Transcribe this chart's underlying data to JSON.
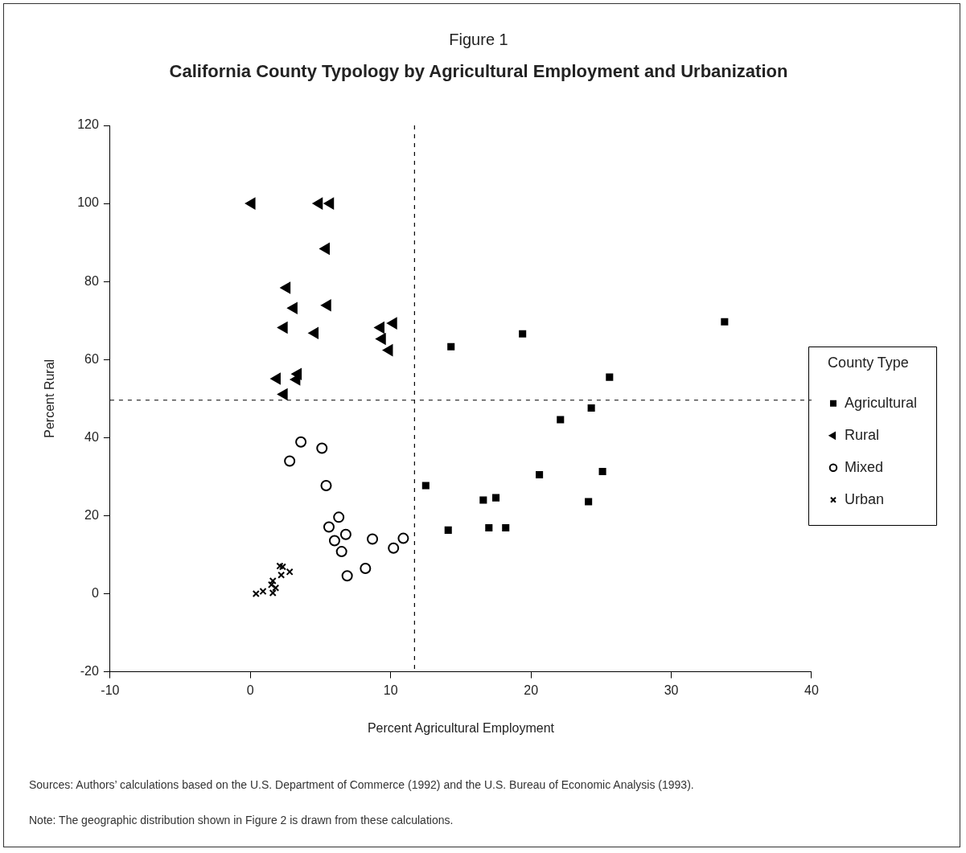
{
  "chart_data": {
    "type": "scatter",
    "title": "Figure 1",
    "subtitle": "California County Typology by Agricultural Employment and Urbanization",
    "xlabel": "Percent Agricultural Employment",
    "ylabel": "Percent Rural",
    "legend_title": "County Type",
    "legend": "right",
    "grid": false,
    "xlim": [
      -10,
      40
    ],
    "xticks": [
      -10,
      0,
      10,
      20,
      30,
      40
    ],
    "ylim": [
      -20,
      120
    ],
    "yticks": [
      -20,
      0,
      20,
      40,
      60,
      80,
      100,
      120
    ],
    "series": [
      {
        "name": "Agricultural",
        "color": "#000000",
        "marker": "square",
        "x": [
          14.3,
          19.4,
          33.8,
          25.6,
          24.3,
          22.1,
          20.6,
          25.1,
          12.5,
          16.6,
          17.5,
          24.1,
          14.1,
          17.0,
          18.2
        ],
        "values": [
          63.3,
          66.6,
          69.7,
          55.5,
          47.6,
          44.6,
          30.5,
          31.3,
          27.7,
          24.0,
          24.6,
          23.6,
          16.3,
          16.9,
          16.9
        ]
      },
      {
        "name": "Rural",
        "color": "#000000",
        "marker": "triangle",
        "x": [
          0.1,
          4.9,
          5.7,
          5.4,
          2.6,
          3.1,
          5.5,
          2.4,
          4.6,
          9.3,
          10.2,
          9.4,
          9.9,
          1.9,
          3.4,
          3.3,
          2.4
        ],
        "values": [
          100,
          100,
          100,
          88.4,
          78.4,
          73.2,
          73.9,
          68.2,
          66.8,
          68.2,
          69.3,
          65.3,
          62.4,
          55.1,
          56.3,
          54.9,
          51.1
        ]
      },
      {
        "name": "Mixed",
        "color": "#000000",
        "marker": "circle",
        "x": [
          3.6,
          5.1,
          2.8,
          5.4,
          6.3,
          5.6,
          6.8,
          6.0,
          8.7,
          10.9,
          10.2,
          6.5,
          8.2,
          6.9
        ],
        "values": [
          38.9,
          37.3,
          34.0,
          27.7,
          19.6,
          17.1,
          15.2,
          13.6,
          14.0,
          14.2,
          11.7,
          10.8,
          6.5,
          4.6
        ]
      },
      {
        "name": "Urban",
        "color": "#000000",
        "marker": "cross",
        "x": [
          2.1,
          2.3,
          2.8,
          2.2,
          1.6,
          1.5,
          1.8,
          1.6,
          0.9,
          0.4
        ],
        "values": [
          7.1,
          6.9,
          5.6,
          4.8,
          3.3,
          2.3,
          1.5,
          0.2,
          0.6,
          0.0
        ]
      }
    ],
    "ref_lines": [
      {
        "axis": "x",
        "value": 11.7,
        "line_style": "dashed",
        "color": "#000000"
      },
      {
        "axis": "y",
        "value": 49.6,
        "line_style": "dashed",
        "color": "#000000"
      }
    ],
    "annotations": [
      "Sources: Authors’ calculations based on the U.S. Department of Commerce (1992) and the U.S. Bureau of Economic Analysis (1993).",
      "Note: The geographic distribution shown in Figure 2 is drawn from these calculations."
    ]
  }
}
